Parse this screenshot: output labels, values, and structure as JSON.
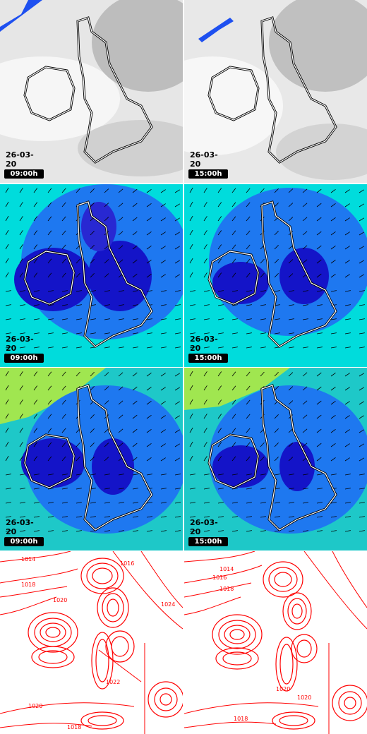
{
  "panels": [
    {
      "row": "cloud",
      "date": "26-03-20",
      "time": "09:00h"
    },
    {
      "row": "cloud",
      "date": "26-03-20",
      "time": "15:00h"
    },
    {
      "row": "wind",
      "date": "26-03-20",
      "time": "09:00h"
    },
    {
      "row": "wind",
      "date": "26-03-20",
      "time": "15:00h"
    },
    {
      "row": "gust",
      "date": "26-03-20",
      "time": "09:00h"
    },
    {
      "row": "gust",
      "date": "26-03-20",
      "time": "15:00h"
    },
    {
      "row": "pressure",
      "date": "",
      "time": ""
    },
    {
      "row": "pressure",
      "date": "",
      "time": ""
    }
  ],
  "isobars": {
    "left": [
      "1014",
      "1016",
      "1018",
      "1020",
      "1024",
      "1022",
      "1020",
      "1018"
    ],
    "right": [
      "1014",
      "1016",
      "1018",
      "1020",
      "1020",
      "1018"
    ]
  },
  "colors": {
    "front": "#1e50f0",
    "wind_low": "#1414c8",
    "wind_mid": "#1e78f0",
    "wind_high": "#00dcdc",
    "gust_strong": "#a0e650",
    "isobar": "#ff0000"
  }
}
